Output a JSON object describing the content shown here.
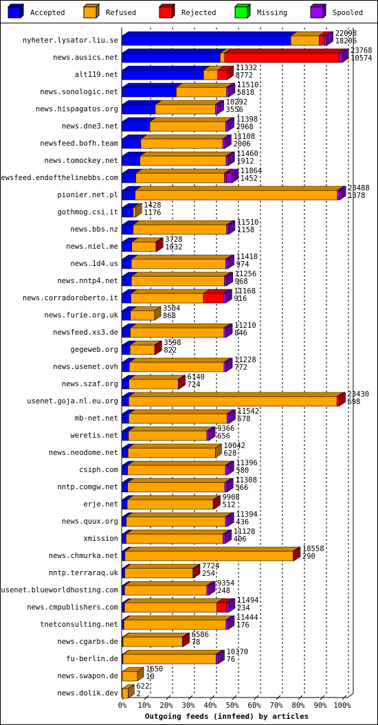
{
  "chart_data": {
    "type": "stacked-bar-3d",
    "title": "Outgoing feeds (innfeed) by articles",
    "categories": [
      "nyheter.lysator.liu.se",
      "news.ausics.net",
      "alt119.net",
      "news.sonologic.net",
      "news.hispagatos.org",
      "news.dne3.net",
      "newsfeed.bofh.team",
      "news.tomockey.net",
      "newsfeed.endofthelinebbs.com",
      "pionier.net.pl",
      "gothmog.csi.it",
      "news.bbs.nz",
      "news.niel.me",
      "news.1d4.us",
      "news.nntp4.net",
      "news.corradoroberto.it",
      "news.furie.org.uk",
      "newsfeed.xs3.de",
      "gegeweb.org",
      "news.usenet.ovh",
      "news.szaf.org",
      "usenet.goja.nl.eu.org",
      "mb-net.net",
      "weretis.net",
      "news.neodome.net",
      "csiph.com",
      "nntp.comgw.net",
      "erje.net",
      "news.quux.org",
      "xmission",
      "news.chmurka.net",
      "nntp.terraraq.uk",
      "usenet.blueworldhosting.com",
      "news.cmpublishers.com",
      "tnetconsulting.net",
      "news.cgarbs.de",
      "fu-berlin.de",
      "news.swapon.de",
      "news.dolik.dev"
    ],
    "series": [
      {
        "name": "Accepted",
        "color": "#0000ff",
        "values": [
          76.6,
          44.5,
          36.9,
          24.5,
          15.0,
          12.5,
          8.4,
          8.0,
          6.1,
          5.8,
          4.9,
          4.9,
          4.3,
          4.1,
          4.1,
          3.9,
          3.7,
          3.6,
          3.5,
          3.2,
          3.0,
          2.9,
          2.9,
          2.8,
          2.6,
          2.4,
          2.4,
          2.2,
          1.8,
          1.7,
          1.2,
          1.1,
          1.0,
          1.0,
          0.7,
          0.3,
          0.3,
          0,
          0
        ]
      },
      {
        "name": "Refused",
        "color": "#ffa500",
        "values": [
          12.9,
          2.0,
          6.5,
          22.9,
          27.3,
          34.5,
          37.3,
          39.2,
          40.3,
          92.0,
          1.1,
          42.5,
          11.0,
          42.9,
          42.3,
          33.0,
          11.0,
          42.6,
          11.2,
          43.0,
          22.4,
          94.7,
          44.7,
          35.6,
          39.7,
          44.5,
          44.2,
          39.1,
          45.1,
          44.1,
          76.5,
          31.0,
          37.4,
          42.0,
          46.4,
          27.0,
          42.3,
          6.9,
          2.6
        ]
      },
      {
        "name": "Rejected",
        "color": "#ff0000",
        "values": [
          2.5,
          52.0,
          4.3,
          0,
          0,
          0,
          0,
          0,
          1.0,
          0,
          0,
          0,
          0.4,
          0,
          0,
          9.1,
          0,
          0,
          0.4,
          0,
          0.4,
          1.0,
          0,
          0,
          0,
          0,
          0,
          0.4,
          0,
          0,
          0.4,
          0.4,
          0,
          4.4,
          0,
          0.4,
          0,
          0,
          0
        ]
      },
      {
        "name": "Missing",
        "color": "#00ff00",
        "values": [
          0,
          0,
          0,
          0,
          0,
          0,
          0,
          0,
          0,
          0,
          0,
          0,
          0,
          0,
          0,
          0,
          0,
          0,
          0,
          0,
          0,
          0,
          0,
          0,
          0,
          0,
          0,
          0,
          0,
          0,
          0,
          0,
          0,
          0,
          0,
          0,
          0,
          0,
          0
        ]
      },
      {
        "name": "Spooled",
        "color": "#a000ff",
        "values": [
          1.0,
          1.5,
          0,
          1.0,
          1.0,
          1.0,
          1.0,
          1.0,
          2.5,
          1.0,
          0,
          1.0,
          0,
          1.0,
          1.0,
          1.0,
          0,
          1.0,
          0,
          1.0,
          0,
          0,
          1.0,
          1.0,
          0,
          1.0,
          1.0,
          0,
          1.0,
          1.0,
          0,
          0,
          1.0,
          1.0,
          1.0,
          0,
          1.0,
          0,
          0
        ]
      }
    ],
    "offered": [
      22098,
      23768,
      11332,
      11510,
      10292,
      11398,
      11108,
      11460,
      11864,
      23488,
      1428,
      11510,
      3728,
      11418,
      11256,
      11168,
      3504,
      11210,
      3598,
      11228,
      6140,
      23430,
      11542,
      9366,
      10042,
      11396,
      11308,
      9908,
      11394,
      11128,
      18558,
      7724,
      9354,
      11494,
      11444,
      6586,
      10370,
      1650,
      622
    ],
    "accepted": [
      18206,
      10574,
      8772,
      5818,
      3556,
      2968,
      2006,
      1912,
      1452,
      1378,
      1176,
      1158,
      1032,
      974,
      968,
      916,
      868,
      846,
      822,
      772,
      724,
      698,
      678,
      656,
      628,
      580,
      566,
      512,
      436,
      406,
      290,
      254,
      248,
      234,
      176,
      78,
      76,
      10,
      2
    ],
    "xlim": [
      0,
      100
    ],
    "xticks": [
      {
        "value": 0,
        "label": "0%"
      },
      {
        "value": 10,
        "label": "10%"
      },
      {
        "value": 20,
        "label": "20%"
      },
      {
        "value": 30,
        "label": "30%"
      },
      {
        "value": 40,
        "label": "40%"
      },
      {
        "value": 50,
        "label": "50%"
      },
      {
        "value": 60,
        "label": "60%"
      },
      {
        "value": 70,
        "label": "70%"
      },
      {
        "value": 80,
        "label": "80%"
      },
      {
        "value": 90,
        "label": "90%"
      },
      {
        "value": 100,
        "label": "100%"
      }
    ],
    "grid": true
  }
}
